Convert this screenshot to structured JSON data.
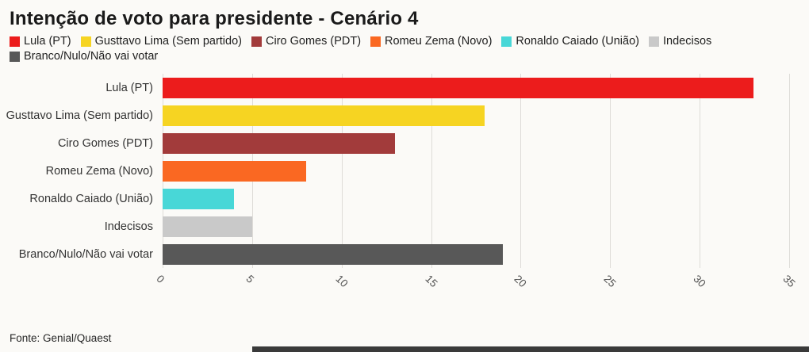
{
  "title": "Intenção de voto para presidente - Cenário 4",
  "footer": "Fonte: Genial/Quaest",
  "chart_data": {
    "type": "bar",
    "orientation": "horizontal",
    "title": "Intenção de voto para presidente - Cenário 4",
    "categories": [
      "Lula (PT)",
      "Gusttavo Lima (Sem partido)",
      "Ciro Gomes (PDT)",
      "Romeu Zema (Novo)",
      "Ronaldo Caiado (União)",
      "Indecisos",
      "Branco/Nulo/Não vai votar"
    ],
    "values": [
      33,
      18,
      13,
      8,
      4,
      5,
      19
    ],
    "colors": [
      "#ec1c1c",
      "#f6d422",
      "#a23b3b",
      "#fa6822",
      "#48d7d7",
      "#c9c9c9",
      "#585858"
    ],
    "xlim": [
      0,
      35
    ],
    "xticks": [
      0,
      5,
      10,
      15,
      20,
      25,
      30,
      35
    ],
    "grid": true,
    "legend_position": "top",
    "source": "Fonte: Genial/Quaest"
  }
}
